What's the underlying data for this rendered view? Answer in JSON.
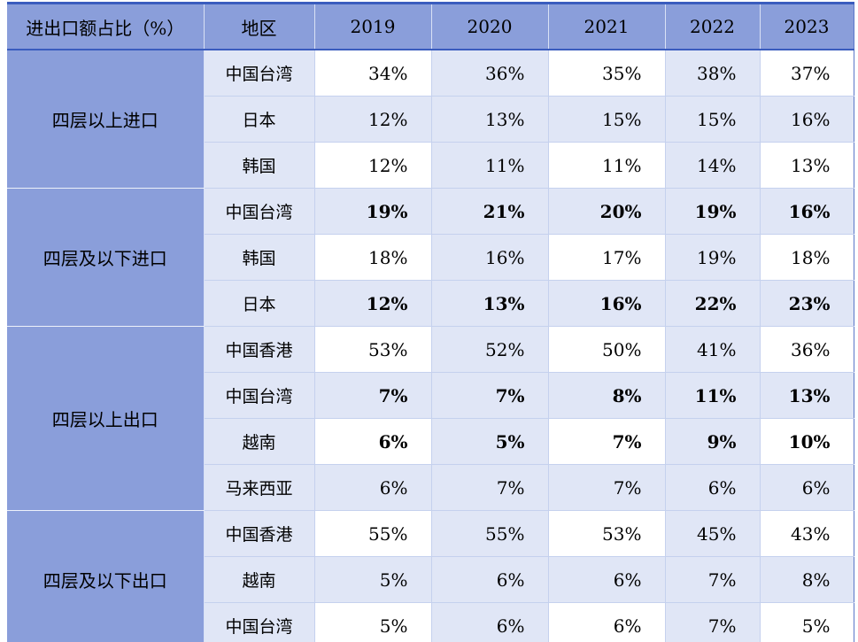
{
  "table": {
    "header": {
      "title_col": "进出口额占比（%）",
      "region_col": "地区",
      "years": [
        "2019",
        "2020",
        "2021",
        "2022",
        "2023"
      ]
    },
    "groups": [
      {
        "label": "四层以上进口",
        "rows": [
          {
            "region": "中国台湾",
            "values": [
              "34%",
              "36%",
              "35%",
              "38%",
              "37%"
            ],
            "bold": false
          },
          {
            "region": "日本",
            "values": [
              "12%",
              "13%",
              "15%",
              "15%",
              "16%"
            ],
            "bold": false
          },
          {
            "region": "韩国",
            "values": [
              "12%",
              "11%",
              "11%",
              "14%",
              "13%"
            ],
            "bold": false
          }
        ]
      },
      {
        "label": "四层及以下进口",
        "rows": [
          {
            "region": "中国台湾",
            "values": [
              "19%",
              "21%",
              "20%",
              "19%",
              "16%"
            ],
            "bold": true
          },
          {
            "region": "韩国",
            "values": [
              "18%",
              "16%",
              "17%",
              "19%",
              "18%"
            ],
            "bold": false
          },
          {
            "region": "日本",
            "values": [
              "12%",
              "13%",
              "16%",
              "22%",
              "23%"
            ],
            "bold": true
          }
        ]
      },
      {
        "label": "四层以上出口",
        "rows": [
          {
            "region": "中国香港",
            "values": [
              "53%",
              "52%",
              "50%",
              "41%",
              "36%"
            ],
            "bold": false
          },
          {
            "region": "中国台湾",
            "values": [
              "7%",
              "7%",
              "8%",
              "11%",
              "13%"
            ],
            "bold": true
          },
          {
            "region": "越南",
            "values": [
              "6%",
              "5%",
              "7%",
              "9%",
              "10%"
            ],
            "bold": true
          },
          {
            "region": "马来西亚",
            "values": [
              "6%",
              "7%",
              "7%",
              "6%",
              "6%"
            ],
            "bold": false
          }
        ]
      },
      {
        "label": "四层及以下出口",
        "rows": [
          {
            "region": "中国香港",
            "values": [
              "55%",
              "55%",
              "53%",
              "45%",
              "43%"
            ],
            "bold": false
          },
          {
            "region": "越南",
            "values": [
              "5%",
              "6%",
              "6%",
              "7%",
              "8%"
            ],
            "bold": false
          },
          {
            "region": "中国台湾",
            "values": [
              "5%",
              "6%",
              "6%",
              "7%",
              "5%"
            ],
            "bold": false
          }
        ]
      }
    ],
    "colors": {
      "header_bg": "#8A9EDA",
      "band_bg": "#E0E6F6",
      "white_bg": "#FFFFFF",
      "border_navy": "#3A5CBE",
      "gridline": "#C5D1EE",
      "header_separator": "#D9E1F5",
      "group_separator": "#EDF1FA",
      "right_edge": "#5B76C8"
    }
  },
  "chart_data": {
    "type": "table",
    "title": "进出口额占比（%）",
    "columns": [
      "进出口额占比（%）",
      "地区",
      "2019",
      "2020",
      "2021",
      "2022",
      "2023"
    ],
    "rows": [
      [
        "四层以上进口",
        "中国台湾",
        34,
        36,
        35,
        38,
        37
      ],
      [
        "四层以上进口",
        "日本",
        12,
        13,
        15,
        15,
        16
      ],
      [
        "四层以上进口",
        "韩国",
        12,
        11,
        11,
        14,
        13
      ],
      [
        "四层及以下进口",
        "中国台湾",
        19,
        21,
        20,
        19,
        16
      ],
      [
        "四层及以下进口",
        "韩国",
        18,
        16,
        17,
        19,
        18
      ],
      [
        "四层及以下进口",
        "日本",
        12,
        13,
        16,
        22,
        23
      ],
      [
        "四层以上出口",
        "中国香港",
        53,
        52,
        50,
        41,
        36
      ],
      [
        "四层以上出口",
        "中国台湾",
        7,
        7,
        8,
        11,
        13
      ],
      [
        "四层以上出口",
        "越南",
        6,
        5,
        7,
        9,
        10
      ],
      [
        "四层以上出口",
        "马来西亚",
        6,
        7,
        7,
        6,
        6
      ],
      [
        "四层及以下出口",
        "中国香港",
        55,
        55,
        53,
        45,
        43
      ],
      [
        "四层及以下出口",
        "越南",
        5,
        6,
        6,
        7,
        8
      ],
      [
        "四层及以下出口",
        "中国台湾",
        5,
        6,
        6,
        7,
        5
      ]
    ],
    "units": "%"
  }
}
